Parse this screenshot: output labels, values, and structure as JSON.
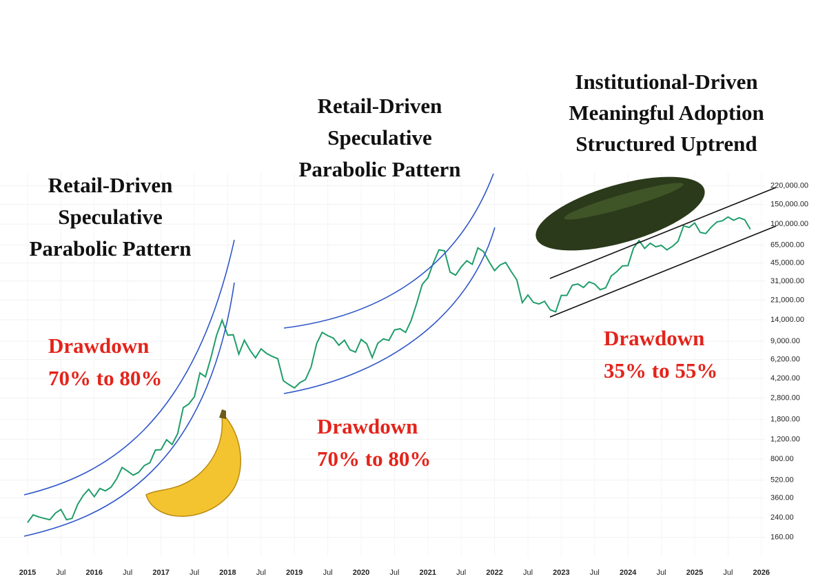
{
  "chart_data": {
    "type": "line",
    "log_scale": true,
    "grid": true,
    "color": "#1f9d6a",
    "ylim": [
      120,
      290000
    ],
    "yticks": [
      {
        "value": 160,
        "label": "160.00"
      },
      {
        "value": 240,
        "label": "240.00"
      },
      {
        "value": 360,
        "label": "360.00"
      },
      {
        "value": 520,
        "label": "520.00"
      },
      {
        "value": 800,
        "label": "800.00"
      },
      {
        "value": 1200,
        "label": "1,200.00"
      },
      {
        "value": 1800,
        "label": "1,800.00"
      },
      {
        "value": 2800,
        "label": "2,800.00"
      },
      {
        "value": 4200,
        "label": "4,200.00"
      },
      {
        "value": 6200,
        "label": "6,200.00"
      },
      {
        "value": 9000,
        "label": "9,000.00"
      },
      {
        "value": 14000,
        "label": "14,000.00"
      },
      {
        "value": 21000,
        "label": "21,000.00"
      },
      {
        "value": 31000,
        "label": "31,000.00"
      },
      {
        "value": 45000,
        "label": "45,000.00"
      },
      {
        "value": 65000,
        "label": "65,000.00"
      },
      {
        "value": 100000,
        "label": "100,000.00"
      },
      {
        "value": 150000,
        "label": "150,000.00"
      },
      {
        "value": 220000,
        "label": "220,000.00"
      }
    ],
    "xticks": [
      {
        "value": "2015-01",
        "label": "2015"
      },
      {
        "value": "2015-07",
        "label": "Jul"
      },
      {
        "value": "2016-01",
        "label": "2016"
      },
      {
        "value": "2016-07",
        "label": "Jul"
      },
      {
        "value": "2017-01",
        "label": "2017"
      },
      {
        "value": "2017-07",
        "label": "Jul"
      },
      {
        "value": "2018-01",
        "label": "2018"
      },
      {
        "value": "2018-07",
        "label": "Jul"
      },
      {
        "value": "2019-01",
        "label": "2019"
      },
      {
        "value": "2019-07",
        "label": "Jul"
      },
      {
        "value": "2020-01",
        "label": "2020"
      },
      {
        "value": "2020-07",
        "label": "Jul"
      },
      {
        "value": "2021-01",
        "label": "2021"
      },
      {
        "value": "2021-07",
        "label": "Jul"
      },
      {
        "value": "2022-01",
        "label": "2022"
      },
      {
        "value": "2022-07",
        "label": "Jul"
      },
      {
        "value": "2023-01",
        "label": "2023"
      },
      {
        "value": "2023-07",
        "label": "Jul"
      },
      {
        "value": "2024-01",
        "label": "2024"
      },
      {
        "value": "2024-07",
        "label": "Jul"
      },
      {
        "value": "2025-01",
        "label": "2025"
      },
      {
        "value": "2025-07",
        "label": "Jul"
      },
      {
        "value": "2026-01",
        "label": "2026"
      }
    ],
    "x": [
      "2015-01",
      "2015-02",
      "2015-03",
      "2015-04",
      "2015-05",
      "2015-06",
      "2015-07",
      "2015-08",
      "2015-09",
      "2015-10",
      "2015-11",
      "2015-12",
      "2016-01",
      "2016-02",
      "2016-03",
      "2016-04",
      "2016-05",
      "2016-06",
      "2016-07",
      "2016-08",
      "2016-09",
      "2016-10",
      "2016-11",
      "2016-12",
      "2017-01",
      "2017-02",
      "2017-03",
      "2017-04",
      "2017-05",
      "2017-06",
      "2017-07",
      "2017-08",
      "2017-09",
      "2017-10",
      "2017-11",
      "2017-12",
      "2018-01",
      "2018-02",
      "2018-03",
      "2018-04",
      "2018-05",
      "2018-06",
      "2018-07",
      "2018-08",
      "2018-09",
      "2018-10",
      "2018-11",
      "2018-12",
      "2019-01",
      "2019-02",
      "2019-03",
      "2019-04",
      "2019-05",
      "2019-06",
      "2019-07",
      "2019-08",
      "2019-09",
      "2019-10",
      "2019-11",
      "2019-12",
      "2020-01",
      "2020-02",
      "2020-03",
      "2020-04",
      "2020-05",
      "2020-06",
      "2020-07",
      "2020-08",
      "2020-09",
      "2020-10",
      "2020-11",
      "2020-12",
      "2021-01",
      "2021-02",
      "2021-03",
      "2021-04",
      "2021-05",
      "2021-06",
      "2021-07",
      "2021-08",
      "2021-09",
      "2021-10",
      "2021-11",
      "2021-12",
      "2022-01",
      "2022-02",
      "2022-03",
      "2022-04",
      "2022-05",
      "2022-06",
      "2022-07",
      "2022-08",
      "2022-09",
      "2022-10",
      "2022-11",
      "2022-12",
      "2023-01",
      "2023-02",
      "2023-03",
      "2023-04",
      "2023-05",
      "2023-06",
      "2023-07",
      "2023-08",
      "2023-09",
      "2023-10",
      "2023-11",
      "2023-12",
      "2024-01",
      "2024-02",
      "2024-03",
      "2024-04",
      "2024-05",
      "2024-06",
      "2024-07",
      "2024-08",
      "2024-09",
      "2024-10",
      "2024-11",
      "2024-12",
      "2025-01",
      "2025-02",
      "2025-03",
      "2025-04",
      "2025-05",
      "2025-06",
      "2025-07",
      "2025-08",
      "2025-09",
      "2025-10",
      "2025-11"
    ],
    "values": [
      217,
      254,
      244,
      236,
      230,
      263,
      284,
      230,
      236,
      314,
      378,
      430,
      369,
      437,
      416,
      448,
      531,
      673,
      624,
      575,
      609,
      700,
      742,
      963,
      970,
      1190,
      1080,
      1350,
      2300,
      2480,
      2875,
      4700,
      4340,
      6470,
      10200,
      13900,
      10200,
      10300,
      6900,
      9200,
      7500,
      6400,
      7700,
      7000,
      6600,
      6300,
      4000,
      3700,
      3450,
      3850,
      4100,
      5300,
      8600,
      10800,
      10100,
      9600,
      8300,
      9200,
      7550,
      7200,
      9350,
      8550,
      6450,
      8650,
      9450,
      9150,
      11350,
      11650,
      10800,
      13800,
      19700,
      29000,
      33100,
      45200,
      58900,
      57800,
      37300,
      35000,
      41500,
      47100,
      43800,
      61300,
      57000,
      46300,
      38500,
      43200,
      45500,
      37700,
      31800,
      19900,
      23300,
      20000,
      19400,
      20500,
      17200,
      16500,
      23100,
      23100,
      28500,
      29200,
      27200,
      30500,
      29200,
      26000,
      27000,
      34500,
      37700,
      42300,
      42600,
      61200,
      71300,
      60600,
      67500,
      62700,
      64600,
      58900,
      63300,
      70200,
      96400,
      93400,
      102400,
      84300,
      82500,
      94200,
      104600,
      107100,
      115800,
      108200,
      114000,
      109500,
      90000
    ],
    "annotations": [
      {
        "lines": [
          "Retail-Driven",
          "Speculative",
          "Parabolic Pattern"
        ],
        "color": "#111111"
      },
      {
        "lines": [
          "Retail-Driven",
          "Speculative",
          "Parabolic Pattern"
        ],
        "color": "#111111"
      },
      {
        "lines": [
          "Institutional-Driven",
          "Meaningful Adoption",
          "Structured Uptrend"
        ],
        "color": "#111111"
      },
      {
        "lines": [
          "Drawdown",
          "70% to 80%"
        ],
        "color": "#e3241b"
      },
      {
        "lines": [
          "Drawdown",
          "70% to 80%"
        ],
        "color": "#e3241b"
      },
      {
        "lines": [
          "Drawdown",
          "35% to 55%"
        ],
        "color": "#e3241b"
      }
    ]
  }
}
